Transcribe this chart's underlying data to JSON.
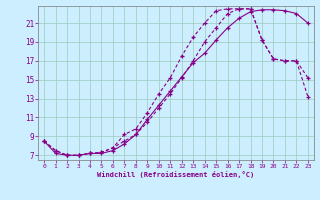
{
  "xlabel": "Windchill (Refroidissement éolien,°C)",
  "bg_color": "#cceeff",
  "line_color": "#880088",
  "grid_color": "#99ccbb",
  "xlim": [
    -0.5,
    23.5
  ],
  "ylim": [
    6.5,
    22.8
  ],
  "yticks": [
    7,
    9,
    11,
    13,
    15,
    17,
    19,
    21
  ],
  "xticks": [
    0,
    1,
    2,
    3,
    4,
    5,
    6,
    7,
    8,
    9,
    10,
    11,
    12,
    13,
    14,
    15,
    16,
    17,
    18,
    19,
    20,
    21,
    22,
    23
  ],
  "line1_x": [
    0,
    1,
    2,
    3,
    4,
    5,
    6,
    7,
    8,
    9,
    10,
    11,
    12,
    13,
    14,
    15,
    16,
    17,
    18,
    19,
    20,
    21,
    22,
    23
  ],
  "line1_y": [
    8.5,
    7.2,
    7.0,
    7.0,
    7.2,
    7.2,
    7.5,
    8.2,
    9.2,
    10.8,
    12.3,
    13.8,
    15.3,
    16.8,
    17.8,
    19.2,
    20.5,
    21.5,
    22.2,
    22.4,
    22.4,
    22.3,
    22.0,
    21.0
  ],
  "line2_x": [
    0,
    1,
    2,
    3,
    4,
    5,
    6,
    7,
    8,
    9,
    10,
    11,
    12,
    13,
    14,
    15,
    16,
    17,
    18,
    19,
    20,
    21,
    22,
    23
  ],
  "line2_y": [
    8.5,
    7.5,
    7.0,
    7.0,
    7.2,
    7.3,
    7.8,
    9.2,
    9.8,
    11.5,
    13.5,
    15.2,
    17.5,
    19.5,
    21.0,
    22.3,
    22.5,
    22.5,
    22.5,
    19.2,
    17.2,
    17.0,
    17.0,
    15.2
  ],
  "line3_x": [
    0,
    1,
    2,
    3,
    4,
    5,
    6,
    7,
    8,
    9,
    10,
    11,
    12,
    13,
    14,
    15,
    16,
    17,
    18,
    19,
    20,
    21,
    22,
    23
  ],
  "line3_y": [
    8.5,
    7.5,
    7.0,
    7.0,
    7.2,
    7.3,
    7.8,
    8.5,
    9.2,
    10.5,
    12.0,
    13.5,
    15.2,
    17.0,
    19.0,
    20.5,
    22.0,
    22.5,
    22.5,
    19.2,
    17.2,
    17.0,
    17.0,
    13.2
  ]
}
